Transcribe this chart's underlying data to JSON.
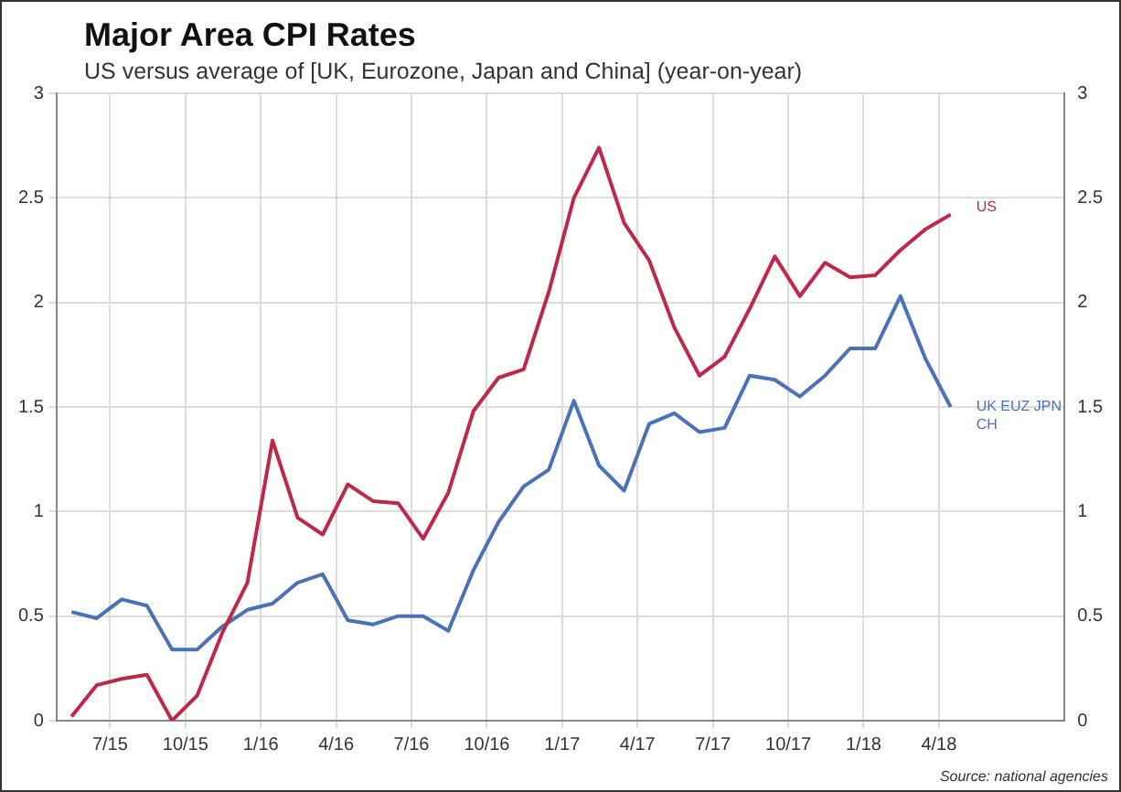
{
  "chart_data": {
    "type": "line",
    "title": "Major Area CPI Rates",
    "subtitle": "US versus average of [UK, Eurozone, Japan and China] (year-on-year)",
    "x": [
      "2015-05-15",
      "2015-06-15",
      "2015-07-15",
      "2015-08-15",
      "2015-09-15",
      "2015-10-15",
      "2015-11-15",
      "2015-12-15",
      "2016-01-15",
      "2016-02-15",
      "2016-03-15",
      "2016-04-15",
      "2016-05-15",
      "2016-06-15",
      "2016-07-15",
      "2016-08-15",
      "2016-09-15",
      "2016-10-15",
      "2016-11-15",
      "2016-12-15",
      "2017-01-15",
      "2017-02-15",
      "2017-03-15",
      "2017-04-15",
      "2017-05-15",
      "2017-06-15",
      "2017-07-15",
      "2017-08-15",
      "2017-09-15",
      "2017-10-15",
      "2017-11-15",
      "2017-12-15",
      "2018-01-15",
      "2018-02-15",
      "2018-03-15",
      "2018-04-15"
    ],
    "series": [
      {
        "name": "US",
        "color": "#c0284a",
        "values": [
          0.02,
          0.17,
          0.2,
          0.22,
          0.0,
          0.12,
          0.42,
          0.66,
          1.34,
          0.97,
          0.89,
          1.13,
          1.05,
          1.04,
          0.87,
          1.09,
          1.48,
          1.64,
          1.68,
          2.05,
          2.5,
          2.74,
          2.38,
          2.2,
          1.88,
          1.65,
          1.74,
          1.97,
          2.22,
          2.03,
          2.19,
          2.12,
          2.13,
          2.25,
          2.35,
          2.42
        ]
      },
      {
        "name": "UK EUZ JPN CH",
        "color": "#4a72b8",
        "values": [
          0.52,
          0.49,
          0.58,
          0.55,
          0.34,
          0.34,
          0.45,
          0.53,
          0.56,
          0.66,
          0.7,
          0.48,
          0.46,
          0.5,
          0.5,
          0.43,
          0.72,
          0.95,
          1.12,
          1.2,
          1.53,
          1.22,
          1.1,
          1.42,
          1.47,
          1.38,
          1.4,
          1.65,
          1.63,
          1.55,
          1.65,
          1.78,
          1.78,
          2.03,
          1.73,
          1.5
        ]
      }
    ],
    "xlim": [
      "2015-04-27",
      "2018-09-01"
    ],
    "xticks": [
      {
        "value": "2015-07",
        "label": "7/15"
      },
      {
        "value": "2015-10",
        "label": "10/15"
      },
      {
        "value": "2016-01",
        "label": "1/16"
      },
      {
        "value": "2016-04",
        "label": "4/16"
      },
      {
        "value": "2016-07",
        "label": "7/16"
      },
      {
        "value": "2016-10",
        "label": "10/16"
      },
      {
        "value": "2017-01",
        "label": "1/17"
      },
      {
        "value": "2017-04",
        "label": "4/17"
      },
      {
        "value": "2017-07",
        "label": "7/17"
      },
      {
        "value": "2017-10",
        "label": "10/17"
      },
      {
        "value": "2018-01",
        "label": "1/18"
      },
      {
        "value": "2018-04",
        "label": "4/18"
      }
    ],
    "ylim": [
      0,
      3
    ],
    "yticks": [
      0,
      0.5,
      1,
      1.5,
      2,
      2.5,
      3
    ],
    "y2lim": [
      0,
      3
    ],
    "y2ticks": [
      0,
      0.5,
      1,
      1.5,
      2,
      2.5,
      3
    ],
    "grid": true,
    "legend": false,
    "marker": "none",
    "line_style": "solid",
    "annotations": [
      "Source: national agencies"
    ]
  }
}
